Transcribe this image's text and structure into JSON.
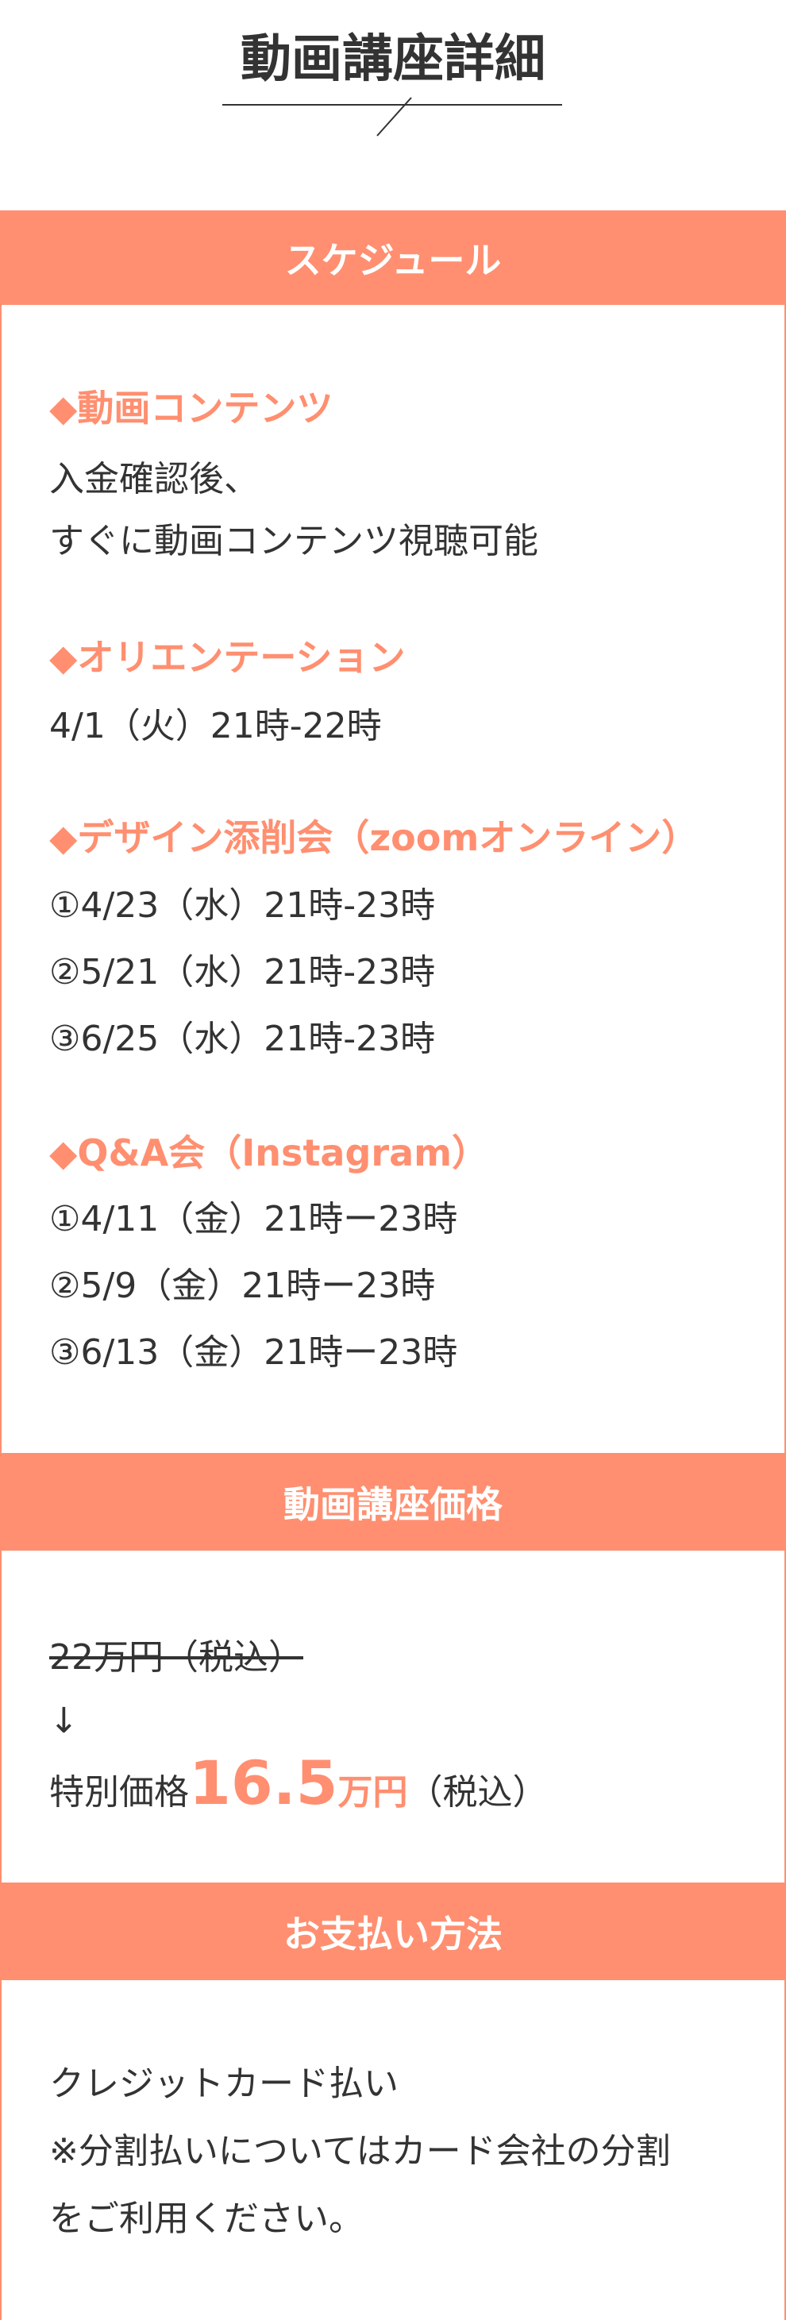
{
  "title": "動画講座詳細",
  "schedule": {
    "heading": "スケジュール",
    "items": [
      {
        "heading": "◆動画コンテンツ",
        "lines": [
          "入金確認後、",
          "すぐに動画コンテンツ視聴可能"
        ]
      },
      {
        "heading": "◆オリエンテーション",
        "lines": [
          "4/1（火）21時-22時"
        ]
      },
      {
        "heading": "◆デザイン添削会（zoomオンライン）",
        "lines": [
          "①4/23（水）21時-23時",
          "②5/21（水）21時-23時",
          "③6/25（水）21時-23時"
        ]
      },
      {
        "heading": "◆Q&A会（Instagram）",
        "lines": [
          "①4/11（金）21時ー23時",
          "②5/9（金）21時ー23時",
          "③6/13（金）21時ー23時"
        ]
      }
    ]
  },
  "price": {
    "heading": "動画講座価格",
    "old_price": "22万円（税込）",
    "arrow": "↓",
    "label": "特別価格",
    "amount": "16.5",
    "unit": "万円",
    "tax": "（税込）"
  },
  "payment": {
    "heading": "お支払い方法",
    "lines": [
      "クレジットカード払い",
      "※分割払いについてはカード会社の分割",
      "をご利用ください。"
    ]
  }
}
